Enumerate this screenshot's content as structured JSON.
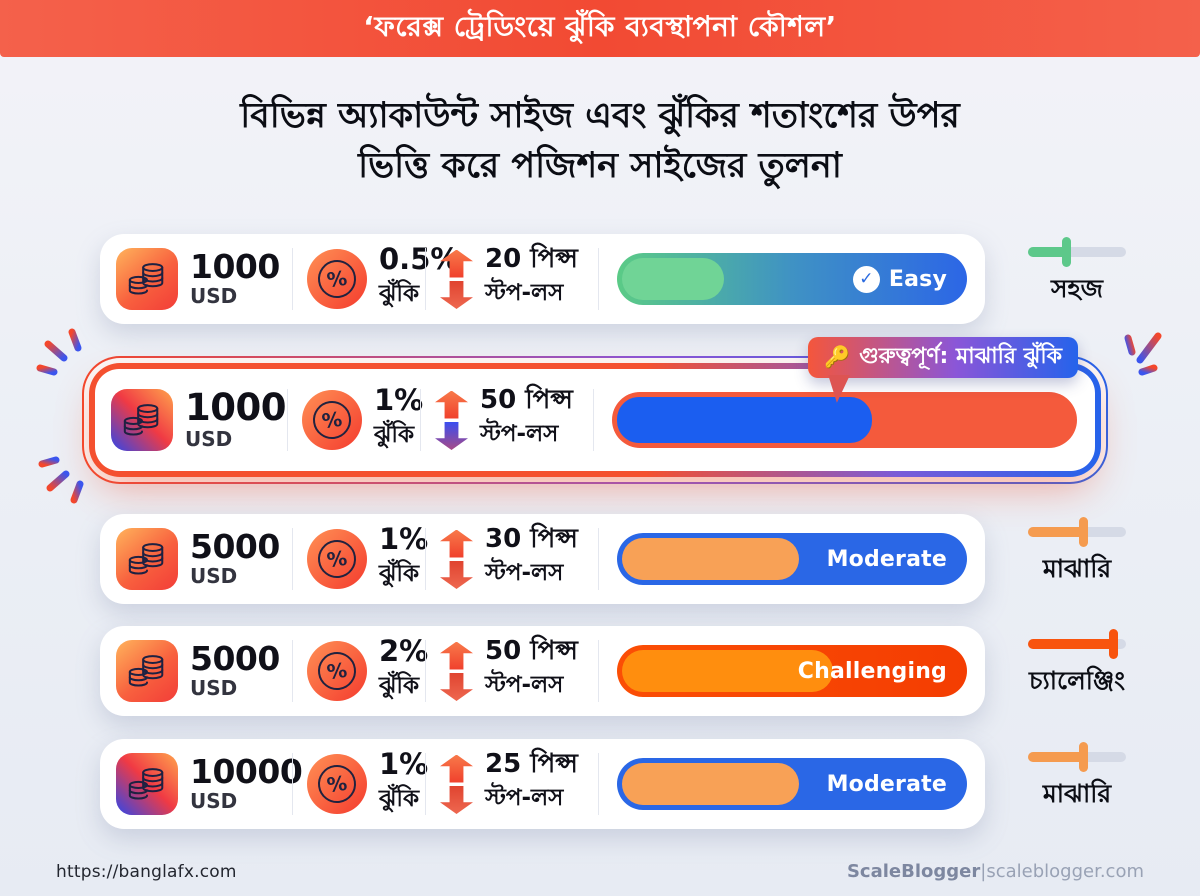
{
  "banner": {
    "text": "‘ফরেক্স ট্রেডিংয়ে ঝুঁকি ব্যবস্থাপনা কৌশল’"
  },
  "heading": {
    "line1": "বিভিন্ন অ্যাকাউন্ট সাইজ এবং ঝুঁকির শতাংশের উপর",
    "line2": "ভিত্তি করে পজিশন সাইজের তুলনা"
  },
  "callout": {
    "emoji": "🔑",
    "text": "গুরুত্বপূর্ণ: মাঝারি ঝুঁকি"
  },
  "icons": {
    "percent_glyph": "%",
    "check_glyph": "✓"
  },
  "rows": [
    {
      "highlight": false,
      "coin_style": "warm",
      "account": {
        "amount": "1000",
        "currency": "USD"
      },
      "risk": {
        "value": "0.5%",
        "label": "ঝুঁকি"
      },
      "stop_loss": {
        "value": "20 পিপ্স",
        "label": "স্টপ-লস"
      },
      "arrows": {
        "up": [
          "#f8794a",
          "#f0402c"
        ],
        "down": [
          "#ee6850",
          "#e04430"
        ]
      },
      "bar": {
        "label": "Easy",
        "check": true,
        "fill_pct": 30,
        "track_colors": [
          "#5bcb86",
          "#3f92c4",
          "#2c66e6"
        ],
        "fill_color": "#70d496"
      },
      "slider": {
        "pct": 40,
        "color": "#5dc88a",
        "label": "সহজ"
      }
    },
    {
      "highlight": true,
      "coin_style": "cool",
      "account": {
        "amount": "1000",
        "currency": "USD"
      },
      "risk": {
        "value": "1%",
        "label": "ঝুঁকি"
      },
      "stop_loss": {
        "value": "50 পিপ্স",
        "label": "স্টপ-লস"
      },
      "arrows": {
        "up": [
          "#f8794a",
          "#f0402c"
        ],
        "down": [
          "#a84a86",
          "#3a4ef0"
        ]
      },
      "bar": {
        "label": "",
        "check": false,
        "fill_pct": 56,
        "track_colors": [
          "#f45a3c"
        ],
        "fill_color": "#1b5ef0"
      },
      "slider": null
    },
    {
      "highlight": false,
      "coin_style": "warm",
      "account": {
        "amount": "5000",
        "currency": "USD"
      },
      "risk": {
        "value": "1%",
        "label": "ঝুঁকি"
      },
      "stop_loss": {
        "value": "30 পিপ্স",
        "label": "স্টপ-লস"
      },
      "arrows": {
        "up": [
          "#f8794a",
          "#f0402c"
        ],
        "down": [
          "#ee6850",
          "#e04430"
        ]
      },
      "bar": {
        "label": "Moderate",
        "check": false,
        "fill_pct": 52,
        "track_colors": [
          "#2a67e6"
        ],
        "fill_color": "#f8a156"
      },
      "slider": {
        "pct": 57,
        "color": "#f59b4f",
        "label": "মাঝারি"
      }
    },
    {
      "highlight": false,
      "coin_style": "warm",
      "account": {
        "amount": "5000",
        "currency": "USD"
      },
      "risk": {
        "value": "2%",
        "label": "ঝুঁকি"
      },
      "stop_loss": {
        "value": "50 পিপ্স",
        "label": "স্টপ-লস"
      },
      "arrows": {
        "up": [
          "#f8794a",
          "#f0402c"
        ],
        "down": [
          "#ee6850",
          "#e04430"
        ]
      },
      "bar": {
        "label": "Challenging",
        "check": false,
        "fill_pct": 62,
        "track_colors": [
          "#fb4e05",
          "#f43d02"
        ],
        "fill_color": "#ff8e0e"
      },
      "slider": {
        "pct": 88,
        "color": "#f8540e",
        "label": "চ্যালেঞ্জিং"
      }
    },
    {
      "highlight": false,
      "coin_style": "cool",
      "account": {
        "amount": "10000",
        "currency": "USD"
      },
      "risk": {
        "value": "1%",
        "label": "ঝুঁকি"
      },
      "stop_loss": {
        "value": "25 পিপ্স",
        "label": "স্টপ-লস"
      },
      "arrows": {
        "up": [
          "#f8794a",
          "#f0402c"
        ],
        "down": [
          "#ee6850",
          "#e04430"
        ]
      },
      "bar": {
        "label": "Moderate",
        "check": false,
        "fill_pct": 52,
        "track_colors": [
          "#2a67e6"
        ],
        "fill_color": "#f8a156"
      },
      "slider": {
        "pct": 57,
        "color": "#f59b4f",
        "label": "মাঝারি"
      }
    }
  ],
  "footer": {
    "url": "https://banglafx.com",
    "brand": "ScaleBlogger",
    "separator": "|",
    "site": "scaleblogger.com"
  },
  "colors": {
    "banner": "#f24a33",
    "highlight_red": "#f4502f",
    "highlight_blue": "#2563eb",
    "easy_green": "#5dc88a",
    "moderate_orange": "#f8a156",
    "challenging_red": "#fb4e05",
    "bar_blue": "#2a67e6"
  }
}
